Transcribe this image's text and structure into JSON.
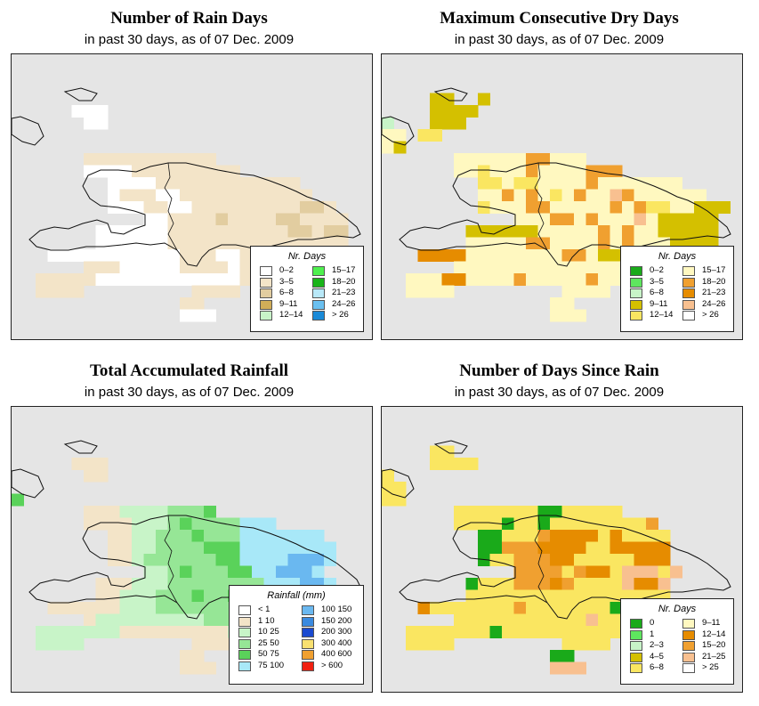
{
  "panels": [
    {
      "title": "Number of Rain Days",
      "subtitle": "in past 30 days, as of  07 Dec. 2009",
      "legend": {
        "title": "Nr. Days",
        "items": [
          {
            "label": "0–2",
            "color": "#ffffff"
          },
          {
            "label": "3–5",
            "color": "#f3e4c8"
          },
          {
            "label": "6–8",
            "color": "#e2cda0"
          },
          {
            "label": "9–11",
            "color": "#d1ad58"
          },
          {
            "label": "12–14",
            "color": "#c8f4c8"
          },
          {
            "label": "15–17",
            "color": "#4ef04e"
          },
          {
            "label": "18–20",
            "color": "#19b419"
          },
          {
            "label": "21–23",
            "color": "#b8e8f8"
          },
          {
            "label": "24–26",
            "color": "#6ac0f0"
          },
          {
            "label": "> 26",
            "color": "#1a8ad8"
          }
        ]
      },
      "grid": [
        "..............................",
        "..............................",
        ".....000......................",
        "......00......................",
        "..............................",
        "..............................",
        "......11111111111.............",
        "......0000111111111...........",
        "........0000111111111111......",
        "........01110011111111111.....",
        "........0001100111111111221...",
        "...........00111121111221111..",
        ".......000000111111111122122..",
        ".......000000111111111111111..",
        "...00000000000111001111111122.",
        "......11100000111101111111111.",
        "..111110000000000001111.......",
        "..1111.........1111...........",
        "..............11..............",
        "..............000.............",
        ".............................."
      ],
      "palette": [
        "#ffffff",
        "#f3e4c8",
        "#e2cda0",
        "#d1ad58"
      ]
    },
    {
      "title": "Maximum Consecutive Dry Days",
      "subtitle": "in past 30 days, as of  07 Dec. 2009",
      "legend": {
        "title": "Nr. Days",
        "items": [
          {
            "label": "0–2",
            "color": "#1aaa1a"
          },
          {
            "label": "3–5",
            "color": "#5ee65e"
          },
          {
            "label": "6–8",
            "color": "#c8f4c8"
          },
          {
            "label": "9–11",
            "color": "#d4c000"
          },
          {
            "label": "12–14",
            "color": "#fae661"
          },
          {
            "label": "15–17",
            "color": "#fff8c0"
          },
          {
            "label": "18–20",
            "color": "#f0a030"
          },
          {
            "label": "21–23",
            "color": "#e68c00"
          },
          {
            "label": "24–26",
            "color": "#f8c090"
          },
          {
            "label": "> 26",
            "color": "#ffffff"
          }
        ]
      },
      "grid": [
        "..............................",
        "....00..0.....................",
        "....0000......................",
        "1...000.......................",
        "33.22.........................",
        "30.............................",
        "......33333344333..............",
        "......33233343333444..........",
        "........22322333343333333.....",
        "........3343432343364333333...",
        "........233344333334342233000.",
        "...........33344343336300000..",
        ".......000000333334343300000..",
        ".......333334433334343330000..",
        "...55553333333344300333333300.",
        "......3333333333333333333333..",
        "..3335533334333334333.........",
        "..3333.........3333...........",
        "..............33..............",
        "..............333.............",
        ".............................."
      ],
      "palette": [
        "#d4c000",
        "#c8f4c8",
        "#fae661",
        "#fff8c0",
        "#f0a030",
        "#e68c00",
        "#f8c090"
      ]
    },
    {
      "title": "Total Accumulated Rainfall",
      "subtitle": "in past 30 days, as of  07 Dec. 2009",
      "legend": {
        "title": "Rainfall (mm)",
        "items": [
          {
            "label": "< 1",
            "color": "#ffffff"
          },
          {
            "label": "1   10",
            "color": "#f3e4c8"
          },
          {
            "label": "10   25",
            "color": "#c8f4c8"
          },
          {
            "label": "25   50",
            "color": "#96e696"
          },
          {
            "label": "50   75",
            "color": "#5ad25a"
          },
          {
            "label": "75  100",
            "color": "#a8e8f8"
          },
          {
            "label": "100  150",
            "color": "#6ab8f0"
          },
          {
            "label": "150  200",
            "color": "#3a8ae0"
          },
          {
            "label": "200  300",
            "color": "#1a4ad0"
          },
          {
            "label": "300  400",
            "color": "#f8e070"
          },
          {
            "label": "400  600",
            "color": "#f0a030"
          },
          {
            "label": "> 600",
            "color": "#f02010"
          }
        ]
      },
      "grid": [
        "..............................",
        "..............................",
        ".....000......................",
        "......00......................",
        "..............................",
        "3.............................",
        "......00011112223..............",
        "......0000111232222444........",
        "........001122232224444444....",
        "........0011222233344444444...",
        "........0012222223344445554...",
        "...........112322233445554....",
        ".......00011122222222444554...",
        ".......001112223223222244445...",
        "...0000001112222222124444444..",
        "......011111111122211222224...",
        "..1111111000000000111.........",
        "..1111.........0000...........",
        "..............00..............",
        "..............000.............",
        ".............................."
      ],
      "palette": [
        "#f3e4c8",
        "#c8f4c8",
        "#96e696",
        "#5ad25a",
        "#a8e8f8",
        "#6ab8f0"
      ]
    },
    {
      "title": "Number of Days Since Rain",
      "subtitle": "in past 30 days, as of  07 Dec. 2009",
      "legend": {
        "title": "Nr. Days",
        "items": [
          {
            "label": "0",
            "color": "#1aaa1a"
          },
          {
            "label": "1",
            "color": "#5ee65e"
          },
          {
            "label": "2–3",
            "color": "#c8f4c8"
          },
          {
            "label": "4–5",
            "color": "#d4c000"
          },
          {
            "label": "6–8",
            "color": "#fae661"
          },
          {
            "label": "9–11",
            "color": "#fff8c0"
          },
          {
            "label": "12–14",
            "color": "#e68c00"
          },
          {
            "label": "15–20",
            "color": "#f0a030"
          },
          {
            "label": "21–25",
            "color": "#f8c090"
          },
          {
            "label": "> 25",
            "color": "#ffffff"
          }
        ]
      },
      "grid": [
        "..............................",
        "....11........................",
        "....1111......................",
        "1.............................",
        "11............................",
        "11.............................",
        "......33333330033333...........",
        "......33330330333333334.........",
        "........0033345555353333......",
        "........0044455553355555......",
        "........0334445533333555......",
        "...........44443455366636.....",
        ".......03334445433336556......",
        ".......11133133333311333......",
        "...5111111141111111055555555..",
        "......333111111116111111114...",
        "..1111111011111111111.........",
        "..1111.........1111...........",
        "..............00..............",
        "..............666.............",
        ".............................."
      ],
      "palette": [
        "#1aaa1a",
        "#fae661",
        "#d4c000",
        "#fae661",
        "#f0a030",
        "#e68c00",
        "#f8c090"
      ]
    }
  ]
}
